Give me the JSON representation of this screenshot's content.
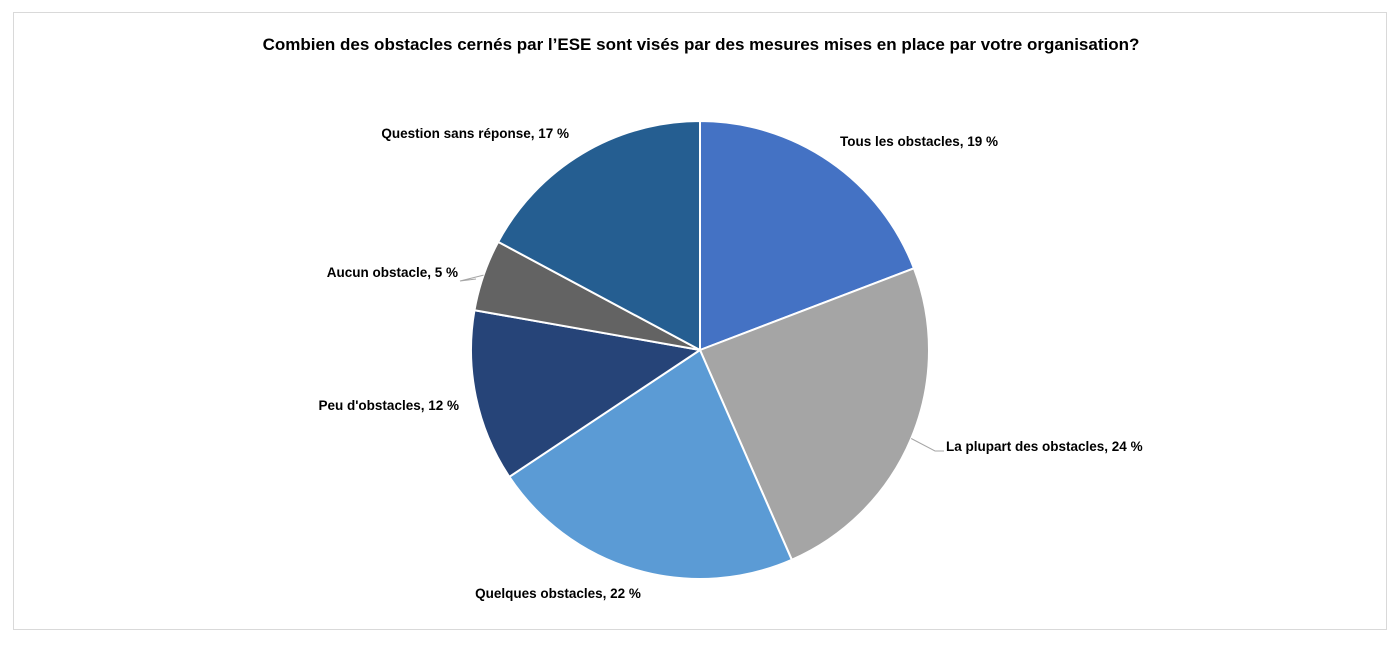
{
  "chart_data": {
    "type": "pie",
    "title": "Combien des obstacles cernés par l’ESE sont visés par des mesures mises en place par votre organisation?",
    "slices": [
      {
        "label": "Tous les obstacles, 19 %",
        "value": 19,
        "color": "#4472C4"
      },
      {
        "label": "La plupart des obstacles, 24 %",
        "value": 24,
        "color": "#A5A5A5"
      },
      {
        "label": "Quelques obstacles, 22 %",
        "value": 22,
        "color": "#5B9BD5"
      },
      {
        "label": "Peu d'obstacles, 12 %",
        "value": 12,
        "color": "#264478"
      },
      {
        "label": "Aucun obstacle, 5 %",
        "value": 5,
        "color": "#636363"
      },
      {
        "label": "Question sans réponse, 17 %",
        "value": 17,
        "color": "#255E91"
      }
    ],
    "start": "12 o'clock",
    "direction": "clockwise",
    "legend": "none",
    "data_labels": "outside"
  }
}
